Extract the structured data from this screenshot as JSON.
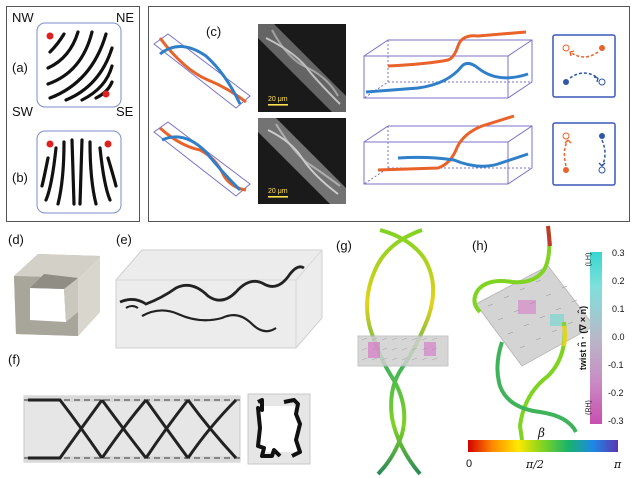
{
  "panels": {
    "a": "(a)",
    "b": "(b)",
    "c": "(c)",
    "d": "(d)",
    "e": "(e)",
    "f": "(f)",
    "g": "(g)",
    "h": "(h)"
  },
  "compass": {
    "nw": "NW",
    "ne": "NE",
    "sw": "SW",
    "se": "SE"
  },
  "scale_bar": {
    "top": "20 μm",
    "bottom": "20 μm"
  },
  "twist_colorbar": {
    "ticks": [
      "0.3",
      "0.2",
      "0.1",
      "0.0",
      "-0.1",
      "-0.2",
      "-0.3"
    ],
    "title": "twist  n̂ · (∇ × n̂)",
    "lh": "(LH)",
    "rh": "(RH)",
    "colors": [
      "#38d6d0",
      "#b8b8c8",
      "#c84fb0"
    ]
  },
  "beta_colorbar": {
    "label": "β",
    "ticks": [
      "0",
      "π/2",
      "π"
    ],
    "colors": [
      "#d40000",
      "#ff8c00",
      "#ffe800",
      "#7fd321",
      "#19b36b",
      "#1e88e5",
      "#5e35b1"
    ]
  },
  "colors": {
    "orange": "#e8622a",
    "blue": "#2f7fc9",
    "dark": "#2b2b2b"
  }
}
